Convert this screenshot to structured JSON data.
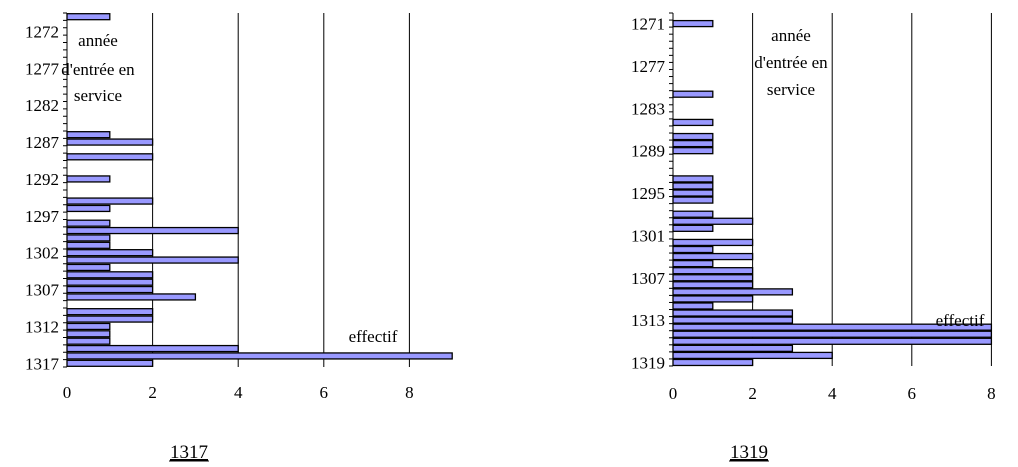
{
  "chart_data": [
    {
      "type": "bar",
      "orientation": "horizontal",
      "caption": "1317",
      "axis_annotation": [
        "année",
        "d'entrée en",
        "service"
      ],
      "value_annotation": "effectif",
      "y_tick_labels": [
        "1272",
        "1277",
        "1282",
        "1287",
        "1292",
        "1297",
        "1302",
        "1307",
        "1312",
        "1317"
      ],
      "x_tick_labels": [
        "0",
        "2",
        "4",
        "6",
        "8"
      ],
      "xlim": [
        0,
        9
      ],
      "ylim": [
        1270,
        1317
      ],
      "grid": "vertical",
      "bar_color": "#9999ff",
      "bars": [
        {
          "year": 1270,
          "value": 1
        },
        {
          "year": 1286,
          "value": 1
        },
        {
          "year": 1287,
          "value": 2
        },
        {
          "year": 1289,
          "value": 2
        },
        {
          "year": 1292,
          "value": 1
        },
        {
          "year": 1295,
          "value": 2
        },
        {
          "year": 1296,
          "value": 1
        },
        {
          "year": 1298,
          "value": 1
        },
        {
          "year": 1299,
          "value": 4
        },
        {
          "year": 1300,
          "value": 1
        },
        {
          "year": 1301,
          "value": 1
        },
        {
          "year": 1302,
          "value": 2
        },
        {
          "year": 1303,
          "value": 4
        },
        {
          "year": 1304,
          "value": 1
        },
        {
          "year": 1305,
          "value": 2
        },
        {
          "year": 1306,
          "value": 2
        },
        {
          "year": 1307,
          "value": 2
        },
        {
          "year": 1308,
          "value": 3
        },
        {
          "year": 1310,
          "value": 2
        },
        {
          "year": 1311,
          "value": 2
        },
        {
          "year": 1312,
          "value": 1
        },
        {
          "year": 1313,
          "value": 1
        },
        {
          "year": 1314,
          "value": 1
        },
        {
          "year": 1315,
          "value": 4
        },
        {
          "year": 1316,
          "value": 9
        },
        {
          "year": 1317,
          "value": 2
        }
      ]
    },
    {
      "type": "bar",
      "orientation": "horizontal",
      "caption": "1319",
      "axis_annotation": [
        "année",
        "d'entrée en",
        "service"
      ],
      "value_annotation": "effectif",
      "y_tick_labels": [
        "1271",
        "1277",
        "1283",
        "1289",
        "1295",
        "1301",
        "1307",
        "1313",
        "1319"
      ],
      "x_tick_labels": [
        "0",
        "2",
        "4",
        "6",
        "8"
      ],
      "xlim": [
        0,
        9
      ],
      "ylim": [
        1270,
        1319
      ],
      "grid": "vertical",
      "bar_color": "#9999ff",
      "bars": [
        {
          "year": 1271,
          "value": 1
        },
        {
          "year": 1281,
          "value": 1
        },
        {
          "year": 1285,
          "value": 1
        },
        {
          "year": 1287,
          "value": 1
        },
        {
          "year": 1288,
          "value": 1
        },
        {
          "year": 1289,
          "value": 1
        },
        {
          "year": 1293,
          "value": 1
        },
        {
          "year": 1294,
          "value": 1
        },
        {
          "year": 1295,
          "value": 1
        },
        {
          "year": 1296,
          "value": 1
        },
        {
          "year": 1298,
          "value": 1
        },
        {
          "year": 1299,
          "value": 2
        },
        {
          "year": 1300,
          "value": 1
        },
        {
          "year": 1302,
          "value": 2
        },
        {
          "year": 1303,
          "value": 1
        },
        {
          "year": 1304,
          "value": 2
        },
        {
          "year": 1305,
          "value": 1
        },
        {
          "year": 1306,
          "value": 2
        },
        {
          "year": 1307,
          "value": 2
        },
        {
          "year": 1308,
          "value": 2
        },
        {
          "year": 1309,
          "value": 3
        },
        {
          "year": 1310,
          "value": 2
        },
        {
          "year": 1311,
          "value": 1
        },
        {
          "year": 1312,
          "value": 3
        },
        {
          "year": 1313,
          "value": 3
        },
        {
          "year": 1314,
          "value": 8
        },
        {
          "year": 1315,
          "value": 8
        },
        {
          "year": 1316,
          "value": 8
        },
        {
          "year": 1317,
          "value": 3
        },
        {
          "year": 1318,
          "value": 4
        },
        {
          "year": 1319,
          "value": 2
        }
      ]
    }
  ]
}
